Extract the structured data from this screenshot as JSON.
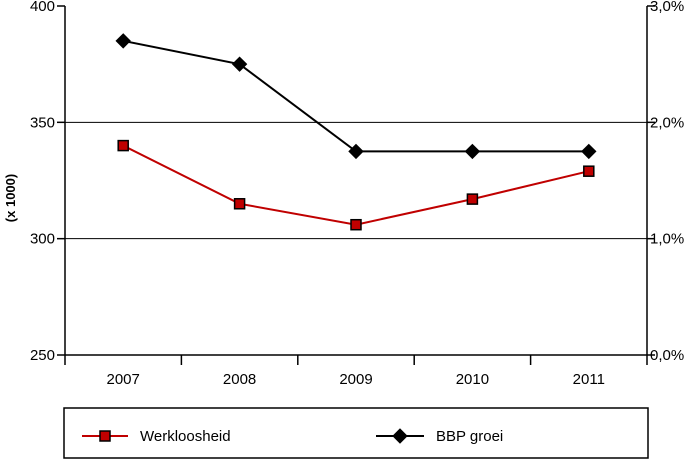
{
  "chart_data": {
    "type": "line",
    "categories": [
      "2007",
      "2008",
      "2009",
      "2010",
      "2011"
    ],
    "ylabel": "(x 1000)",
    "y_left": {
      "min": 250,
      "max": 400,
      "ticks": [
        "250",
        "300",
        "350",
        "400"
      ],
      "tick_values": [
        250,
        300,
        350,
        400
      ]
    },
    "y_right": {
      "min": 0,
      "max": 3.0,
      "ticks": [
        "0,0%",
        "1,0%",
        "2,0%",
        "3,0%"
      ],
      "tick_values": [
        0,
        1.0,
        2.0,
        3.0
      ]
    },
    "gridlines": [
      300,
      350
    ],
    "series": [
      {
        "name": "Werkloosheid",
        "axis": "left",
        "marker": "square",
        "color": "#c00000",
        "values": [
          340,
          315,
          306,
          317,
          329
        ]
      },
      {
        "name": "BBP groei",
        "axis": "right",
        "marker": "diamond",
        "color": "#000000",
        "values": [
          2.7,
          2.5,
          1.75,
          1.75,
          1.75
        ]
      }
    ],
    "legend": "bottom"
  }
}
